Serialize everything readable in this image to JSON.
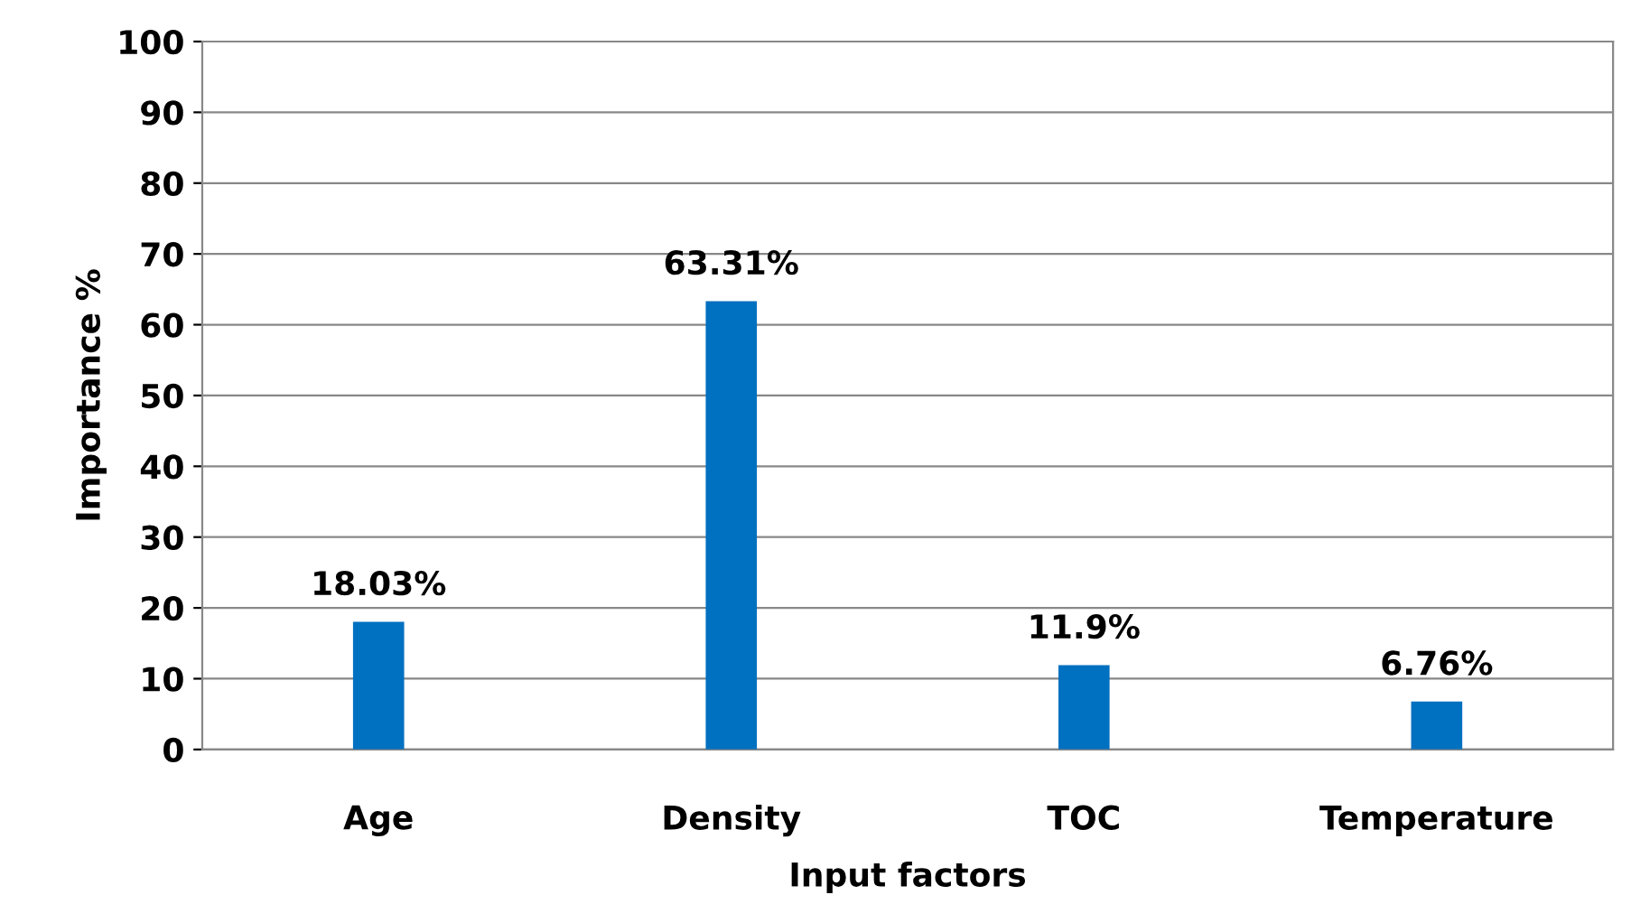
{
  "chart_data": {
    "type": "bar",
    "categories": [
      "Age",
      "Density",
      "TOC",
      "Temperature"
    ],
    "values": [
      18.03,
      63.31,
      11.9,
      6.76
    ],
    "value_labels": [
      "18.03%",
      "63.31%",
      "11.9%",
      "6.76%"
    ],
    "color": "#0070c0",
    "xlabel": "Input factors",
    "ylabel": "Importance %",
    "ylim": [
      0,
      100
    ],
    "yticks": [
      0,
      10,
      20,
      30,
      40,
      50,
      60,
      70,
      80,
      90,
      100
    ],
    "grid": "y"
  }
}
